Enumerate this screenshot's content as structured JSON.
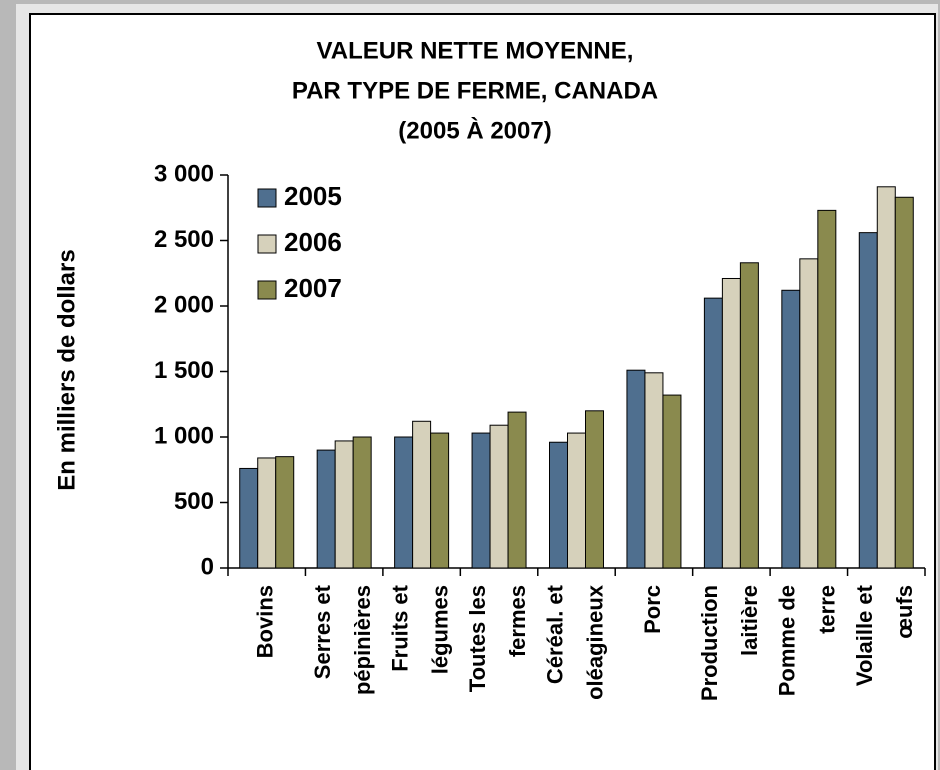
{
  "chart_data": {
    "type": "bar",
    "title": [
      "VALEUR NETTE MOYENNE,",
      "PAR TYPE DE FERME, CANADA",
      "(2005 À 2007)"
    ],
    "y_label": "En milliers de dollars",
    "categories": [
      [
        "Bovins"
      ],
      [
        "Serres et",
        "pépinières"
      ],
      [
        "Fruits et",
        "légumes"
      ],
      [
        "Toutes les",
        "fermes"
      ],
      [
        "Céréal. et",
        "oléagineux"
      ],
      [
        "Porc"
      ],
      [
        "Production",
        "laitière"
      ],
      [
        "Pomme de",
        "terre"
      ],
      [
        "Volaille et",
        "œufs"
      ]
    ],
    "series": [
      {
        "name": "2005",
        "color": "#4f6f8f",
        "values": [
          760,
          900,
          1000,
          1030,
          960,
          1510,
          2060,
          2120,
          2560
        ]
      },
      {
        "name": "2006",
        "color": "#d6d1bb",
        "values": [
          840,
          970,
          1120,
          1090,
          1030,
          1490,
          2210,
          2360,
          2910
        ]
      },
      {
        "name": "2007",
        "color": "#8a8a4e",
        "values": [
          850,
          1000,
          1030,
          1190,
          1200,
          1320,
          2330,
          2730,
          2830
        ]
      }
    ],
    "ylim": [
      0,
      3000
    ],
    "yticks": [
      0,
      500,
      {
        "value": 1000,
        "label": "1 000"
      },
      {
        "value": 1500,
        "label": "1 500"
      },
      {
        "value": 2000,
        "label": "2 000"
      },
      {
        "value": 2500,
        "label": "2 500"
      },
      {
        "value": 3000,
        "label": "3 000"
      }
    ],
    "legend": "upper-left"
  }
}
